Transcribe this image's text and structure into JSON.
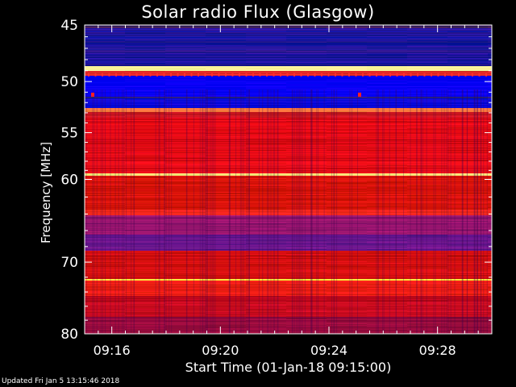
{
  "chart_data": {
    "type": "heatmap",
    "title": "Solar radio Flux (Glasgow)",
    "xlabel": "Start Time (01-Jan-18 09:15:00)",
    "ylabel": "Frequency [MHz]",
    "y_scale": "log",
    "y_axis_inverted": true,
    "ylim": [
      45,
      80
    ],
    "xlim": [
      "09:15:00",
      "09:30:00"
    ],
    "x_ticks": [
      "09:16",
      "09:20",
      "09:24",
      "09:28"
    ],
    "y_ticks": [
      "45",
      "50",
      "55",
      "60",
      "70",
      "80"
    ],
    "y_tick_values": [
      45,
      50,
      55,
      60,
      70,
      80
    ],
    "x_tick_minutes": [
      16,
      20,
      24,
      28
    ],
    "colormap": [
      "#1a1a80",
      "#0000ff",
      "#cc0000",
      "#ff2a00",
      "#ffe040"
    ],
    "bands": [
      {
        "f_min": 45,
        "f_max": 48.6,
        "level": "dark blue"
      },
      {
        "f_min": 48.6,
        "f_max": 49.0,
        "level": "yellow"
      },
      {
        "f_min": 49.0,
        "f_max": 52.5,
        "level": "blue"
      },
      {
        "f_min": 52.6,
        "f_max": 52.9,
        "level": "orange"
      },
      {
        "f_min": 52.9,
        "f_max": 59.3,
        "level": "red"
      },
      {
        "f_min": 59.3,
        "f_max": 59.6,
        "level": "yellow"
      },
      {
        "f_min": 59.6,
        "f_max": 63.5,
        "level": "red"
      },
      {
        "f_min": 63.7,
        "f_max": 64.1,
        "level": "red"
      },
      {
        "f_min": 64.1,
        "f_max": 68.5,
        "level": "purple"
      },
      {
        "f_min": 68.5,
        "f_max": 72.2,
        "level": "red"
      },
      {
        "f_min": 72.2,
        "f_max": 72.5,
        "level": "yellow"
      },
      {
        "f_min": 72.5,
        "f_max": 80,
        "level": "red"
      }
    ]
  },
  "footer": {
    "updated": "Updated Fri Jan  5 13:15:46 2018"
  }
}
